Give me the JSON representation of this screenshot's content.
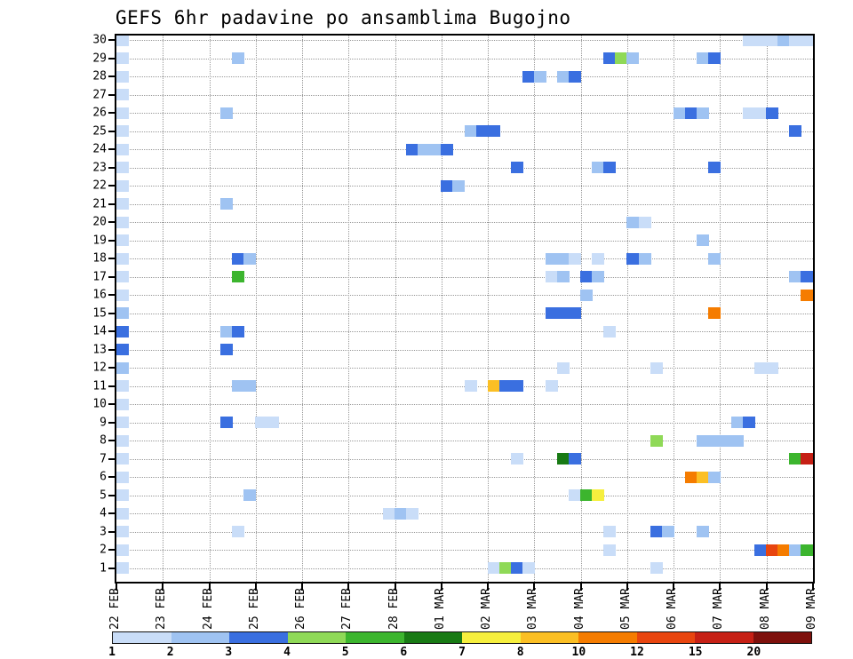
{
  "chart_data": {
    "type": "heatmap",
    "title": "GEFS 6hr padavine po ansamblima Bugojno",
    "x_axis": {
      "labels": [
        "22 FEB",
        "23 FEB",
        "24 FEB",
        "25 FEB",
        "26 FEB",
        "27 FEB",
        "28 FEB",
        "01 MAR",
        "02 MAR",
        "03 MAR",
        "04 MAR",
        "05 MAR",
        "06 MAR",
        "07 MAR",
        "08 MAR",
        "09 MAR"
      ],
      "steps_per_day": 4
    },
    "y_axis": {
      "ticks": [
        30,
        29,
        28,
        27,
        26,
        25,
        24,
        23,
        22,
        21,
        20,
        19,
        18,
        17,
        16,
        15,
        14,
        13,
        12,
        11,
        10,
        9,
        8,
        7,
        6,
        5,
        4,
        3,
        2,
        1
      ],
      "range": [
        0,
        30
      ],
      "unit": "ensemble member"
    },
    "grid": "dotted",
    "legend_position": "bottom",
    "colorbar_labels": [
      "1",
      "2",
      "3",
      "4",
      "5",
      "6",
      "7",
      "8",
      "10",
      "12",
      "15",
      "20"
    ],
    "levels": [
      1,
      2,
      3,
      4,
      5,
      6,
      7,
      8,
      10,
      12,
      15,
      20
    ],
    "colors": [
      "#EAF3FE",
      "#C9DDF8",
      "#9FC3F2",
      "#3A6FE0",
      "#8FD957",
      "#3CB52E",
      "#187A14",
      "#F6EF3E",
      "#FBBF24",
      "#F57C00",
      "#E8450F",
      "#C62015",
      "#7E100C"
    ],
    "cells": [
      [
        30,
        0,
        1.5
      ],
      [
        30,
        54,
        1.5
      ],
      [
        30,
        55,
        1.5
      ],
      [
        30,
        56,
        1.5
      ],
      [
        30,
        57,
        2.5
      ],
      [
        30,
        58,
        1.5
      ],
      [
        30,
        59,
        1.5
      ],
      [
        29,
        0,
        1.5
      ],
      [
        29,
        10,
        2.5
      ],
      [
        29,
        42,
        3.5
      ],
      [
        29,
        43,
        4.5
      ],
      [
        29,
        44,
        2.5
      ],
      [
        29,
        50,
        2.5
      ],
      [
        29,
        51,
        3.5
      ],
      [
        28,
        0,
        1.5
      ],
      [
        28,
        35,
        3.5
      ],
      [
        28,
        36,
        2.5
      ],
      [
        28,
        38,
        2.5
      ],
      [
        28,
        39,
        3.5
      ],
      [
        27,
        0,
        1.5
      ],
      [
        26,
        0,
        1.5
      ],
      [
        26,
        9,
        2.5
      ],
      [
        26,
        48,
        2.5
      ],
      [
        26,
        49,
        3.5
      ],
      [
        26,
        50,
        2.5
      ],
      [
        26,
        54,
        1.5
      ],
      [
        26,
        55,
        1.5
      ],
      [
        26,
        56,
        3.5
      ],
      [
        25,
        0,
        1.5
      ],
      [
        25,
        30,
        2.5
      ],
      [
        25,
        31,
        3.5
      ],
      [
        25,
        32,
        3.5
      ],
      [
        25,
        58,
        3.5
      ],
      [
        24,
        0,
        1.5
      ],
      [
        24,
        25,
        3.5
      ],
      [
        24,
        26,
        2.5
      ],
      [
        24,
        27,
        2.5
      ],
      [
        24,
        28,
        3.5
      ],
      [
        23,
        0,
        1.5
      ],
      [
        23,
        34,
        3.5
      ],
      [
        23,
        41,
        2.5
      ],
      [
        23,
        42,
        3.5
      ],
      [
        23,
        51,
        3.5
      ],
      [
        22,
        0,
        1.5
      ],
      [
        22,
        28,
        3.5
      ],
      [
        22,
        29,
        2.5
      ],
      [
        21,
        0,
        1.5
      ],
      [
        21,
        9,
        2.5
      ],
      [
        20,
        0,
        1.5
      ],
      [
        20,
        44,
        2.5
      ],
      [
        20,
        45,
        1.5
      ],
      [
        19,
        0,
        1.5
      ],
      [
        19,
        50,
        2.5
      ],
      [
        18,
        0,
        1.5
      ],
      [
        18,
        10,
        3.5
      ],
      [
        18,
        11,
        2.5
      ],
      [
        18,
        37,
        2.5
      ],
      [
        18,
        38,
        2.5
      ],
      [
        18,
        39,
        1.5
      ],
      [
        18,
        41,
        1.5
      ],
      [
        18,
        44,
        3.5
      ],
      [
        18,
        45,
        2.5
      ],
      [
        18,
        51,
        2.5
      ],
      [
        17,
        0,
        1.5
      ],
      [
        17,
        10,
        5.5
      ],
      [
        17,
        37,
        1.5
      ],
      [
        17,
        38,
        2.5
      ],
      [
        17,
        40,
        3.5
      ],
      [
        17,
        41,
        2.5
      ],
      [
        17,
        58,
        2.5
      ],
      [
        17,
        59,
        3.5
      ],
      [
        16,
        0,
        1.5
      ],
      [
        16,
        40,
        2.5
      ],
      [
        16,
        59,
        11
      ],
      [
        15,
        0,
        2.5
      ],
      [
        15,
        37,
        3.5
      ],
      [
        15,
        38,
        3.5
      ],
      [
        15,
        39,
        3.5
      ],
      [
        15,
        51,
        11
      ],
      [
        14,
        0,
        3.5
      ],
      [
        14,
        9,
        2.5
      ],
      [
        14,
        10,
        3.5
      ],
      [
        14,
        42,
        1.5
      ],
      [
        13,
        0,
        3.5
      ],
      [
        13,
        9,
        3.5
      ],
      [
        12,
        0,
        2.5
      ],
      [
        12,
        38,
        1.5
      ],
      [
        12,
        46,
        1.5
      ],
      [
        12,
        55,
        1.5
      ],
      [
        12,
        56,
        1.5
      ],
      [
        11,
        0,
        1.5
      ],
      [
        11,
        10,
        2.5
      ],
      [
        11,
        11,
        2.5
      ],
      [
        11,
        30,
        1.5
      ],
      [
        11,
        32,
        9
      ],
      [
        11,
        33,
        3.5
      ],
      [
        11,
        34,
        3.5
      ],
      [
        11,
        37,
        1.5
      ],
      [
        10,
        0,
        1.5
      ],
      [
        9,
        0,
        1.5
      ],
      [
        9,
        9,
        3.5
      ],
      [
        9,
        12,
        1.5
      ],
      [
        9,
        13,
        1.5
      ],
      [
        9,
        53,
        2.5
      ],
      [
        9,
        54,
        3.5
      ],
      [
        8,
        0,
        1.5
      ],
      [
        8,
        46,
        4.5
      ],
      [
        8,
        50,
        2.5
      ],
      [
        8,
        51,
        2.5
      ],
      [
        8,
        52,
        2.5
      ],
      [
        8,
        53,
        2.5
      ],
      [
        7,
        0,
        1.5
      ],
      [
        7,
        34,
        1.5
      ],
      [
        7,
        38,
        6.5
      ],
      [
        7,
        39,
        3.5
      ],
      [
        7,
        58,
        5.5
      ],
      [
        7,
        59,
        17
      ],
      [
        6,
        0,
        1.5
      ],
      [
        6,
        49,
        11
      ],
      [
        6,
        50,
        9
      ],
      [
        6,
        51,
        2.5
      ],
      [
        5,
        0,
        1.5
      ],
      [
        5,
        11,
        2.5
      ],
      [
        5,
        39,
        1.5
      ],
      [
        5,
        40,
        5.5
      ],
      [
        5,
        41,
        7.5
      ],
      [
        4,
        0,
        1.5
      ],
      [
        4,
        23,
        1.5
      ],
      [
        4,
        24,
        2.5
      ],
      [
        4,
        25,
        1.5
      ],
      [
        3,
        0,
        1.5
      ],
      [
        3,
        10,
        1.5
      ],
      [
        3,
        42,
        1.5
      ],
      [
        3,
        46,
        3.5
      ],
      [
        3,
        47,
        2.5
      ],
      [
        3,
        50,
        2.5
      ],
      [
        2,
        0,
        1.5
      ],
      [
        2,
        42,
        1.5
      ],
      [
        2,
        55,
        3.5
      ],
      [
        2,
        56,
        13
      ],
      [
        2,
        57,
        11
      ],
      [
        2,
        58,
        2.5
      ],
      [
        2,
        59,
        5.5
      ],
      [
        1,
        0,
        1.5
      ],
      [
        1,
        32,
        1.5
      ],
      [
        1,
        33,
        4.5
      ],
      [
        1,
        34,
        3.5
      ],
      [
        1,
        35,
        1.5
      ],
      [
        1,
        46,
        1.5
      ]
    ]
  }
}
